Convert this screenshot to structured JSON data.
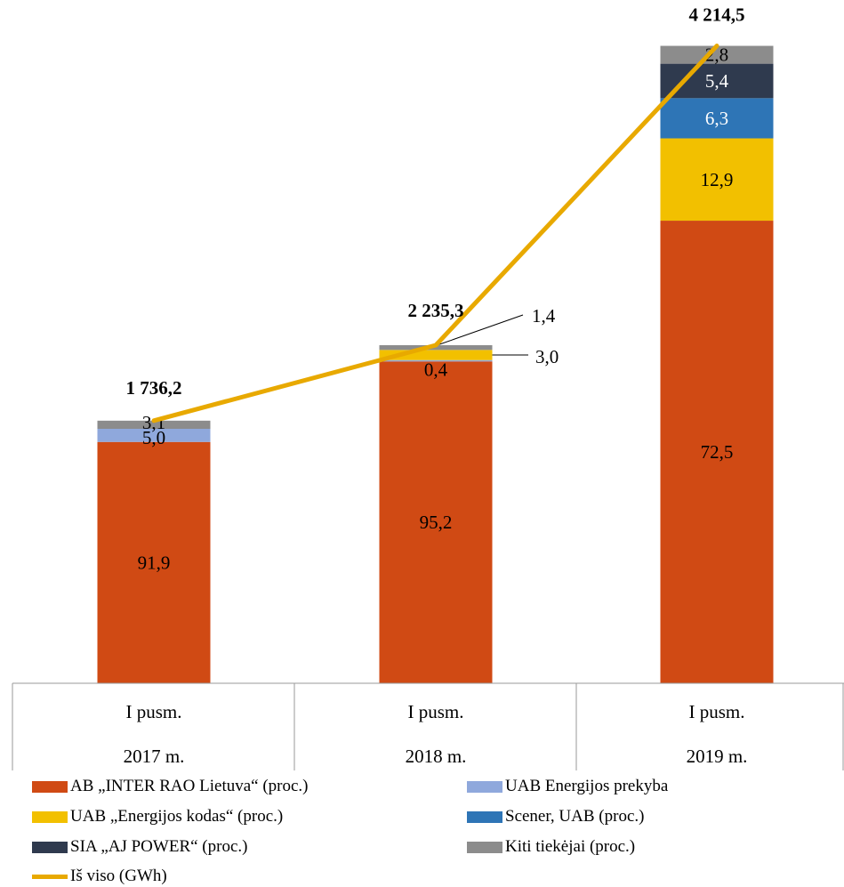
{
  "chart_data": {
    "type": "bar",
    "stacked": true,
    "categories": [
      {
        "line1": "I pusm.",
        "line2": "2017 m."
      },
      {
        "line1": "I pusm.",
        "line2": "2018 m."
      },
      {
        "line1": "I pusm.",
        "line2": "2019 m."
      }
    ],
    "series": [
      {
        "name": "AB „INTER RAO Lietuva“ (proc.)",
        "color": "#D04A14",
        "values": [
          91.9,
          95.2,
          72.5
        ],
        "labels": [
          "91,9",
          "95,2",
          "72,5"
        ]
      },
      {
        "name": "UAB Energijos prekyba",
        "color": "#8FA8DC",
        "values": [
          5.0,
          0.4,
          0.0
        ],
        "labels": [
          "5,0",
          "0,4",
          ""
        ]
      },
      {
        "name": "UAB „Energijos kodas“ (proc.)",
        "color": "#F2C000",
        "values": [
          0.0,
          3.0,
          12.9
        ],
        "labels": [
          "",
          "3,0",
          "12,9"
        ]
      },
      {
        "name": "Scener, UAB (proc.)",
        "color": "#2E75B6",
        "values": [
          0.0,
          0.0,
          6.3
        ],
        "labels": [
          "",
          "",
          "6,3"
        ]
      },
      {
        "name": "SIA „AJ POWER“ (proc.)",
        "color": "#2F3A4E",
        "values": [
          0.0,
          0.0,
          5.4
        ],
        "labels": [
          "",
          "",
          "5,4"
        ]
      },
      {
        "name": "Kiti tiekėjai (proc.)",
        "color": "#8C8C8C",
        "values": [
          3.1,
          1.4,
          2.8
        ],
        "labels": [
          "3,1",
          "1,4",
          "2,8"
        ]
      }
    ],
    "line_series": {
      "name": "Iš viso (GWh)",
      "color": "#E8A900",
      "values": [
        1736.2,
        2235.3,
        4214.5
      ],
      "labels": [
        "1 736,2",
        "2 235,3",
        "4 214,5"
      ]
    },
    "legend_position": "bottom",
    "grid": false
  }
}
